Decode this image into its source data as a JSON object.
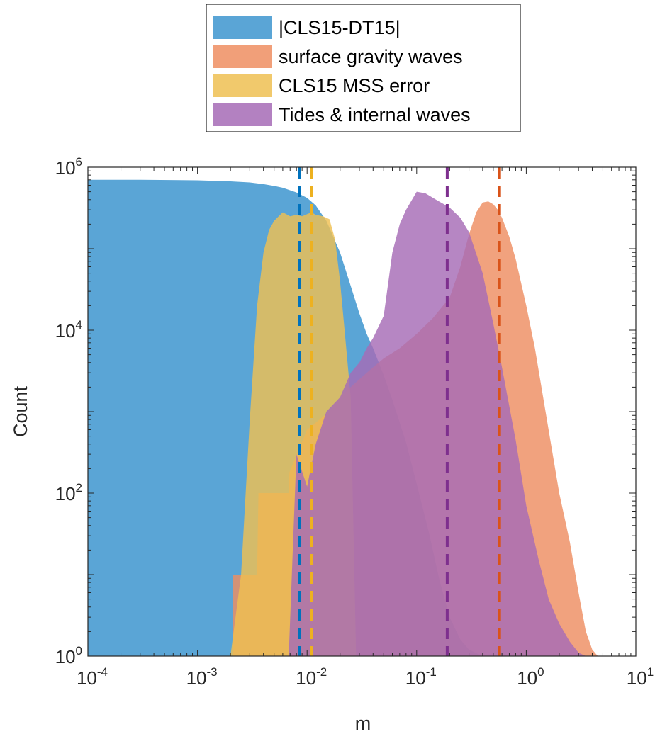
{
  "chart_data": {
    "type": "area",
    "title": "",
    "xlabel": "m",
    "ylabel": "Count",
    "x_scale": "log",
    "y_scale": "log",
    "xlim": [
      0.0001,
      10
    ],
    "ylim": [
      1,
      1000000
    ],
    "x_ticks": [
      {
        "value": 0.0001,
        "base": "10",
        "exp": "-4"
      },
      {
        "value": 0.001,
        "base": "10",
        "exp": "-3"
      },
      {
        "value": 0.01,
        "base": "10",
        "exp": "-2"
      },
      {
        "value": 0.1,
        "base": "10",
        "exp": "-1"
      },
      {
        "value": 1,
        "base": "10",
        "exp": "0"
      },
      {
        "value": 10,
        "base": "10",
        "exp": "1"
      }
    ],
    "y_ticks": [
      {
        "value": 1,
        "base": "10",
        "exp": "0"
      },
      {
        "value": 100,
        "base": "10",
        "exp": "2"
      },
      {
        "value": 10000,
        "base": "10",
        "exp": "4"
      },
      {
        "value": 1000000,
        "base": "10",
        "exp": "6"
      }
    ],
    "grid": false,
    "legend_position": "top-center, above plot",
    "series": [
      {
        "name": "|CLS15-DT15|",
        "color": "#0072BD",
        "fill_color": "#5AA5D6",
        "median": 0.0085,
        "x": [
          0.0001,
          0.0003,
          0.001,
          0.002,
          0.003,
          0.004,
          0.005,
          0.006,
          0.008,
          0.01,
          0.012,
          0.015,
          0.02,
          0.025,
          0.03,
          0.035,
          0.04,
          0.05,
          0.06,
          0.08,
          0.1,
          0.13,
          0.16,
          0.2,
          0.25,
          0.3,
          0.4
        ],
        "y": [
          700000,
          700000,
          690000,
          670000,
          650000,
          620000,
          590000,
          560000,
          490000,
          420000,
          340000,
          220000,
          90000,
          35000,
          16000,
          9000,
          6000,
          2800,
          1400,
          420,
          130,
          32,
          9,
          3,
          1.6,
          1.2,
          1
        ]
      },
      {
        "name": "surface gravity waves",
        "color": "#D95319",
        "fill_color": "#EE8E62",
        "median": 0.57,
        "x": [
          0.0021,
          0.0035,
          0.0036,
          0.0068,
          0.0069,
          0.01,
          0.013,
          0.016,
          0.02,
          0.025,
          0.03,
          0.04,
          0.05,
          0.07,
          0.1,
          0.14,
          0.2,
          0.25,
          0.3,
          0.35,
          0.4,
          0.45,
          0.5,
          0.55,
          0.6,
          0.7,
          0.8,
          1,
          1.2,
          1.5,
          2,
          2.5,
          3,
          3.5,
          4,
          4.5
        ],
        "y": [
          10,
          10,
          100,
          100,
          180,
          600,
          800,
          1000,
          1500,
          2000,
          2500,
          3500,
          4500,
          6000,
          9000,
          14000,
          25000,
          60000,
          150000,
          280000,
          370000,
          380000,
          350000,
          300000,
          240000,
          140000,
          75000,
          20000,
          6000,
          1000,
          100,
          25,
          6,
          2,
          1.2,
          1
        ]
      },
      {
        "name": "CLS15 MSS error",
        "color": "#EDB120",
        "fill_color": "#EFBF52",
        "median": 0.011,
        "x": [
          0.002,
          0.0025,
          0.003,
          0.0035,
          0.004,
          0.0045,
          0.005,
          0.0055,
          0.006,
          0.007,
          0.008,
          0.009,
          0.01,
          0.011,
          0.012,
          0.014,
          0.016,
          0.018,
          0.02,
          0.022,
          0.025,
          0.028
        ],
        "y": [
          1,
          10,
          800,
          20000,
          90000,
          170000,
          220000,
          250000,
          280000,
          250000,
          260000,
          250000,
          265000,
          280000,
          260000,
          250000,
          230000,
          130000,
          40000,
          10000,
          1500,
          1
        ]
      },
      {
        "name": "Tides & internal waves",
        "color": "#7E2F8E",
        "fill_color": "#A66BB6",
        "median": 0.19,
        "x": [
          0.0068,
          0.008,
          0.01,
          0.012,
          0.015,
          0.02,
          0.025,
          0.03,
          0.035,
          0.04,
          0.05,
          0.06,
          0.07,
          0.08,
          0.1,
          0.12,
          0.15,
          0.2,
          0.25,
          0.3,
          0.4,
          0.5,
          0.6,
          0.8,
          1,
          1.3,
          1.6,
          2,
          2.5,
          3,
          3.5
        ],
        "y": [
          1,
          300,
          120,
          400,
          1000,
          1500,
          3000,
          4000,
          6000,
          8000,
          15000,
          90000,
          200000,
          300000,
          500000,
          480000,
          400000,
          320000,
          240000,
          160000,
          50000,
          12000,
          3500,
          450,
          70,
          15,
          5,
          2.5,
          1.5,
          1.1,
          1
        ]
      }
    ]
  }
}
